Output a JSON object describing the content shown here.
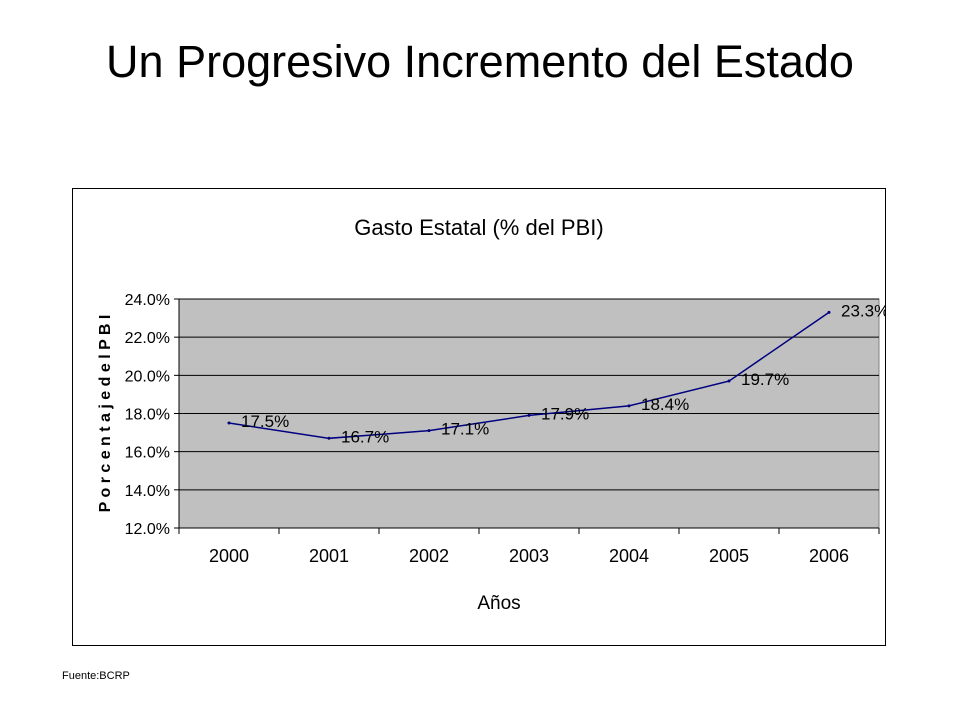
{
  "slide": {
    "title": "Un Progresivo Incremento del Estado",
    "source": "Fuente:BCRP"
  },
  "chart_data": {
    "type": "line",
    "title": "Gasto Estatal (% del PBI)",
    "xlabel": "Años",
    "ylabel": "P o r c e n t a j e   d e l   P B I",
    "categories": [
      "2000",
      "2001",
      "2002",
      "2003",
      "2004",
      "2005",
      "2006"
    ],
    "series": [
      {
        "values": [
          17.5,
          16.7,
          17.1,
          17.9,
          18.4,
          19.7,
          23.3
        ],
        "labels": [
          "17.5%",
          "16.7%",
          "17.1%",
          "17.9%",
          "18.4%",
          "19.7%",
          "23.3%"
        ],
        "color": "#000080"
      }
    ],
    "ylim": [
      12.0,
      24.0
    ],
    "yticks": [
      12.0,
      14.0,
      16.0,
      18.0,
      20.0,
      22.0,
      24.0
    ],
    "ytick_labels": [
      "12.0%",
      "14.0%",
      "16.0%",
      "18.0%",
      "20.0%",
      "22.0%",
      "24.0%"
    ],
    "plot_background": "#c0c0c0",
    "grid": true,
    "legend": "none"
  }
}
